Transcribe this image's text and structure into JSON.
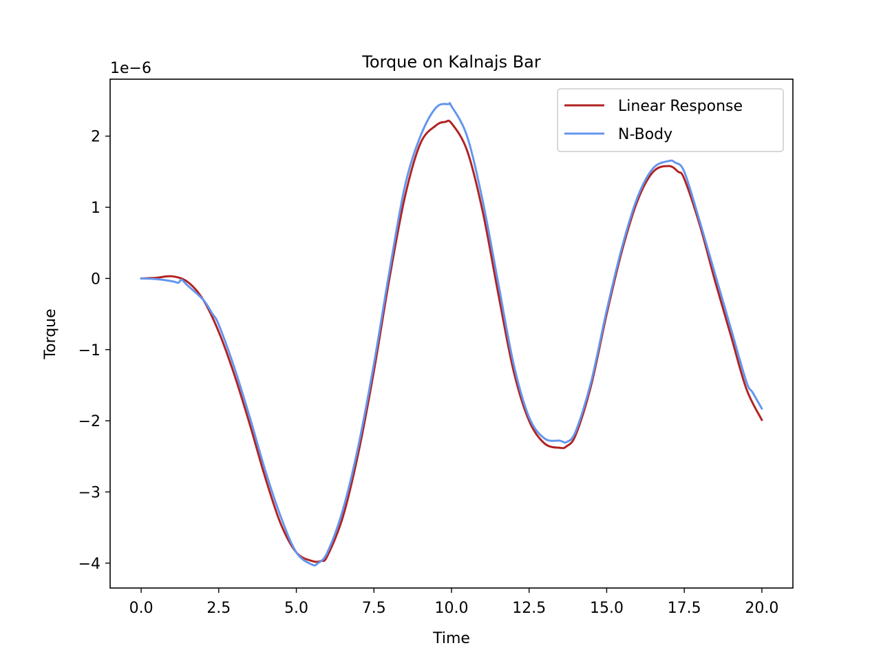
{
  "chart_data": {
    "type": "line",
    "title": "Torque on Kalnajs Bar",
    "xlabel": "Time",
    "ylabel": "Torque",
    "offset_label": "1e−6",
    "xlim": [
      -1.0,
      21.0
    ],
    "ylim": [
      -4.35,
      2.8
    ],
    "xticks": [
      0.0,
      2.5,
      5.0,
      7.5,
      10.0,
      12.5,
      15.0,
      17.5,
      20.0
    ],
    "xtick_labels": [
      "0.0",
      "2.5",
      "5.0",
      "7.5",
      "10.0",
      "12.5",
      "15.0",
      "17.5",
      "20.0"
    ],
    "yticks": [
      -4,
      -3,
      -2,
      -1,
      0,
      1,
      2
    ],
    "ytick_labels": [
      "−4",
      "−3",
      "−2",
      "−1",
      "0",
      "1",
      "2"
    ],
    "grid": false,
    "legend_position": "top-right",
    "series": [
      {
        "name": "Linear Response",
        "color": "#b22222",
        "x": [
          0,
          0.5,
          1.0,
          1.5,
          2.0,
          2.5,
          3.0,
          3.5,
          4.0,
          4.5,
          5.0,
          5.5,
          5.8,
          6.0,
          6.5,
          7.0,
          7.5,
          8.0,
          8.5,
          9.0,
          9.5,
          9.8,
          10.0,
          10.5,
          11.0,
          11.5,
          12.0,
          12.5,
          13.0,
          13.5,
          13.7,
          14.0,
          14.5,
          15.0,
          15.5,
          16.0,
          16.5,
          17.0,
          17.3,
          17.5,
          18.0,
          18.5,
          19.0,
          19.5,
          20.0
        ],
        "values": [
          0.0,
          0.01,
          0.03,
          -0.05,
          -0.3,
          -0.75,
          -1.35,
          -2.05,
          -2.8,
          -3.45,
          -3.85,
          -3.97,
          -3.97,
          -3.9,
          -3.35,
          -2.45,
          -1.3,
          0.0,
          1.15,
          1.9,
          2.15,
          2.2,
          2.18,
          1.8,
          0.95,
          -0.2,
          -1.3,
          -2.0,
          -2.32,
          -2.38,
          -2.36,
          -2.2,
          -1.5,
          -0.5,
          0.4,
          1.1,
          1.5,
          1.58,
          1.5,
          1.4,
          0.75,
          -0.05,
          -0.8,
          -1.55,
          -1.99
        ]
      },
      {
        "name": "N-Body",
        "color": "#6495ed",
        "x": [
          0,
          0.5,
          1.0,
          1.2,
          1.3,
          1.5,
          2.0,
          2.3,
          2.5,
          3.0,
          3.5,
          4.0,
          4.5,
          5.0,
          5.5,
          5.7,
          6.0,
          6.5,
          7.0,
          7.5,
          8.0,
          8.5,
          9.0,
          9.5,
          9.9,
          10.0,
          10.5,
          11.0,
          11.5,
          12.0,
          12.5,
          13.0,
          13.5,
          13.7,
          14.0,
          14.5,
          15.0,
          15.5,
          16.0,
          16.5,
          17.0,
          17.2,
          17.5,
          18.0,
          18.5,
          19.0,
          19.5,
          19.7,
          20.0
        ],
        "values": [
          0.0,
          -0.01,
          -0.04,
          -0.06,
          -0.02,
          -0.1,
          -0.3,
          -0.5,
          -0.65,
          -1.25,
          -1.95,
          -2.7,
          -3.35,
          -3.85,
          -4.02,
          -4.0,
          -3.85,
          -3.25,
          -2.35,
          -1.2,
          0.1,
          1.3,
          2.0,
          2.4,
          2.45,
          2.42,
          2.0,
          1.1,
          -0.05,
          -1.2,
          -1.95,
          -2.25,
          -2.28,
          -2.3,
          -2.15,
          -1.45,
          -0.45,
          0.45,
          1.15,
          1.55,
          1.65,
          1.63,
          1.5,
          0.8,
          0.05,
          -0.7,
          -1.45,
          -1.6,
          -1.83
        ]
      }
    ]
  }
}
